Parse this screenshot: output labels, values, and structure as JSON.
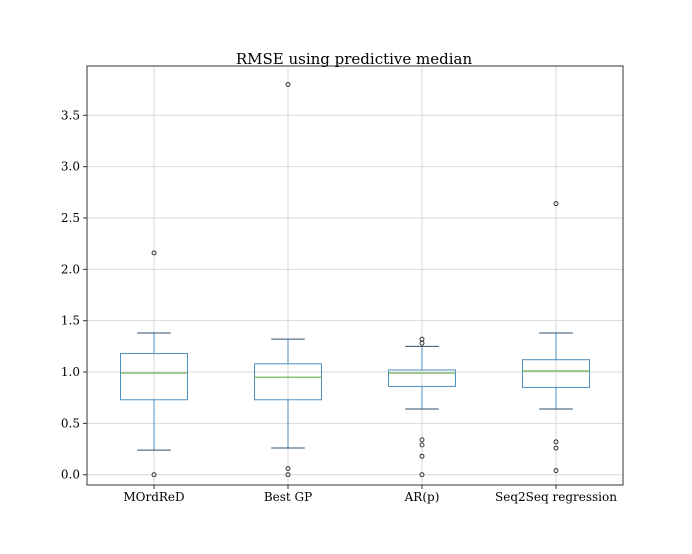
{
  "chart_data": {
    "type": "boxplot",
    "title": "RMSE using predictive median",
    "xlabel": "",
    "ylabel": "",
    "ylim": [
      -0.1,
      3.98
    ],
    "y_ticks": [
      "0.0",
      "0.5",
      "1.0",
      "1.5",
      "2.0",
      "2.5",
      "3.0",
      "3.5"
    ],
    "y_tick_values": [
      0.0,
      0.5,
      1.0,
      1.5,
      2.0,
      2.5,
      3.0,
      3.5
    ],
    "grid": true,
    "legend": "none",
    "colors": {
      "box": "#4a8fc2",
      "median": "#6ab04c",
      "whisker": "#2f4f6f",
      "grid": "#d9d9d9",
      "frame": "#333333",
      "flier": "#222222"
    },
    "categories": [
      "MOrdReD",
      "Best GP",
      "AR(p)",
      "Seq2Seq regression"
    ],
    "boxes": [
      {
        "name": "MOrdReD",
        "whislo": 0.24,
        "q1": 0.73,
        "med": 0.99,
        "q3": 1.18,
        "whishi": 1.38,
        "fliers": [
          0.0,
          2.16
        ]
      },
      {
        "name": "Best GP",
        "whislo": 0.26,
        "q1": 0.73,
        "med": 0.95,
        "q3": 1.08,
        "whishi": 1.32,
        "fliers": [
          0.0,
          0.06,
          3.8
        ]
      },
      {
        "name": "AR(p)",
        "whislo": 0.64,
        "q1": 0.86,
        "med": 0.99,
        "q3": 1.02,
        "whishi": 1.25,
        "fliers": [
          0.0,
          0.18,
          0.29,
          0.34,
          1.28,
          1.32
        ]
      },
      {
        "name": "Seq2Seq regression",
        "whislo": 0.64,
        "q1": 0.85,
        "med": 1.01,
        "q3": 1.12,
        "whishi": 1.38,
        "fliers": [
          0.04,
          0.26,
          0.32,
          2.64
        ]
      }
    ]
  }
}
